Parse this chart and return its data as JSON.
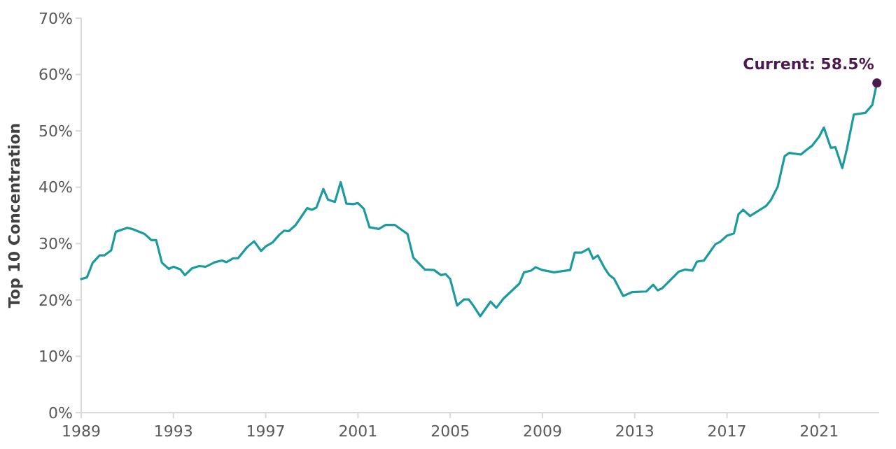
{
  "chart_data": {
    "type": "line",
    "ylabel": "Top 10 Concentration",
    "xlim": [
      1989,
      2023.6
    ],
    "xticks": [
      1989,
      1993,
      1997,
      2001,
      2005,
      2009,
      2013,
      2017,
      2021
    ],
    "ylim": [
      0,
      70
    ],
    "yticks": [
      {
        "value": 0,
        "label": "0%"
      },
      {
        "value": 10,
        "label": "10%"
      },
      {
        "value": 20,
        "label": "20%"
      },
      {
        "value": 30,
        "label": "30%"
      },
      {
        "value": 40,
        "label": "40%"
      },
      {
        "value": 50,
        "label": "50%"
      },
      {
        "value": 60,
        "label": "60%"
      },
      {
        "value": 70,
        "label": "70%"
      }
    ],
    "grid": false,
    "line_style": "solid",
    "marker": "none",
    "annotations": [
      {
        "text": "Current: 58.5%",
        "x": 2023.5,
        "y": 58.5
      }
    ],
    "series": [
      {
        "color": "#1a9ba0",
        "x": [
          1989.0,
          1989.25,
          1989.5,
          1989.8,
          1990.0,
          1990.3,
          1990.5,
          1991.0,
          1991.2,
          1991.75,
          1992.05,
          1992.25,
          1992.5,
          1992.8,
          1993.0,
          1993.3,
          1993.5,
          1993.8,
          1994.1,
          1994.4,
          1994.8,
          1995.1,
          1995.3,
          1995.6,
          1995.8,
          1996.2,
          1996.5,
          1996.8,
          1997.0,
          1997.3,
          1997.6,
          1997.8,
          1998.0,
          1998.3,
          1998.8,
          1999.0,
          1999.2,
          1999.5,
          1999.7,
          2000.0,
          2000.25,
          2000.5,
          2000.8,
          2001.0,
          2001.25,
          2001.5,
          2001.9,
          2002.2,
          2002.6,
          2003.15,
          2003.4,
          2003.9,
          2004.3,
          2004.6,
          2004.8,
          2005.0,
          2005.3,
          2005.6,
          2005.8,
          2006.0,
          2006.3,
          2006.75,
          2007.0,
          2007.3,
          2008.0,
          2008.2,
          2008.5,
          2008.7,
          2009.0,
          2009.5,
          2010.2,
          2010.4,
          2010.7,
          2011.0,
          2011.2,
          2011.4,
          2011.7,
          2011.9,
          2012.1,
          2012.5,
          2012.9,
          2013.5,
          2013.8,
          2014.0,
          2014.2,
          2014.9,
          2015.2,
          2015.5,
          2015.7,
          2016.0,
          2016.5,
          2016.7,
          2017.0,
          2017.3,
          2017.5,
          2017.7,
          2018.0,
          2018.7,
          2018.9,
          2019.2,
          2019.5,
          2019.7,
          2020.2,
          2020.5,
          2020.7,
          2021.0,
          2021.2,
          2021.5,
          2021.7,
          2022.0,
          2022.2,
          2022.5,
          2023.0,
          2023.3,
          2023.5
        ],
        "values": [
          23.7,
          24.0,
          26.6,
          27.9,
          27.9,
          28.8,
          32.1,
          32.8,
          32.6,
          31.7,
          30.6,
          30.6,
          26.6,
          25.5,
          25.9,
          25.4,
          24.4,
          25.6,
          26.0,
          25.9,
          26.7,
          27.0,
          26.7,
          27.4,
          27.4,
          29.4,
          30.4,
          28.7,
          29.5,
          30.2,
          31.6,
          32.3,
          32.2,
          33.3,
          36.3,
          36.0,
          36.4,
          39.7,
          37.8,
          37.4,
          40.9,
          37.1,
          37.0,
          37.2,
          36.2,
          32.9,
          32.6,
          33.3,
          33.3,
          31.7,
          27.5,
          25.4,
          25.3,
          24.4,
          24.6,
          23.7,
          19.0,
          20.1,
          20.1,
          19.0,
          17.1,
          19.7,
          18.6,
          20.2,
          22.9,
          24.9,
          25.2,
          25.8,
          25.3,
          24.9,
          25.3,
          28.4,
          28.4,
          29.1,
          27.3,
          27.9,
          25.6,
          24.4,
          23.8,
          20.7,
          21.4,
          21.5,
          22.7,
          21.7,
          22.1,
          25.0,
          25.4,
          25.2,
          26.8,
          27.0,
          29.9,
          30.3,
          31.4,
          31.8,
          35.2,
          36.0,
          34.9,
          36.7,
          37.7,
          40.1,
          45.5,
          46.1,
          45.8,
          46.8,
          47.4,
          49.0,
          50.6,
          47.0,
          47.1,
          43.4,
          46.8,
          52.9,
          53.2,
          54.6,
          58.5
        ]
      },
      {
        "type": "scatter",
        "marker": "circle",
        "color": "#4b1a4f",
        "x": [
          2023.5
        ],
        "values": [
          58.5
        ]
      }
    ]
  }
}
